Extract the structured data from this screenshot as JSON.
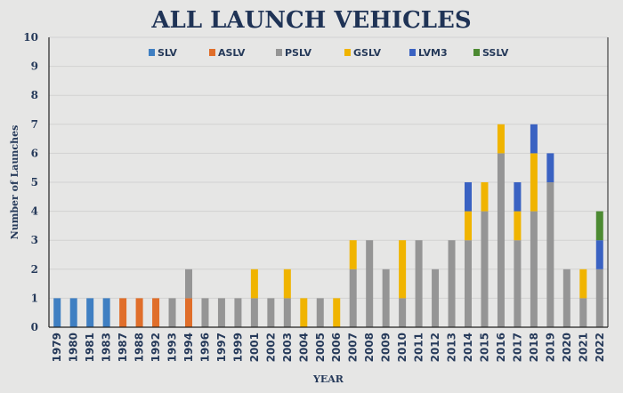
{
  "chart_data": {
    "type": "bar",
    "stacked": true,
    "title": "ALL LAUNCH VEHICLES",
    "xlabel": "YEAR",
    "ylabel": "Number of Launches",
    "ylim": [
      0,
      10
    ],
    "yticks": [
      0,
      1,
      2,
      3,
      4,
      5,
      6,
      7,
      8,
      9,
      10
    ],
    "grid": true,
    "legend_position": "top",
    "categories": [
      "1979",
      "1980",
      "1981",
      "1983",
      "1987",
      "1988",
      "1992",
      "1993",
      "1994",
      "1996",
      "1997",
      "1999",
      "2001",
      "2002",
      "2003",
      "2004",
      "2005",
      "2006",
      "2007",
      "2008",
      "2009",
      "2010",
      "2011",
      "2012",
      "2013",
      "2014",
      "2015",
      "2016",
      "2017",
      "2018",
      "2019",
      "2020",
      "2021",
      "2022"
    ],
    "series": [
      {
        "name": "SLV",
        "color": "#3f7fc2",
        "values": [
          1,
          1,
          1,
          1,
          0,
          0,
          0,
          0,
          0,
          0,
          0,
          0,
          0,
          0,
          0,
          0,
          0,
          0,
          0,
          0,
          0,
          0,
          0,
          0,
          0,
          0,
          0,
          0,
          0,
          0,
          0,
          0,
          0,
          0
        ]
      },
      {
        "name": "ASLV",
        "color": "#e06e2a",
        "values": [
          0,
          0,
          0,
          0,
          1,
          1,
          1,
          0,
          1,
          0,
          0,
          0,
          0,
          0,
          0,
          0,
          0,
          0,
          0,
          0,
          0,
          0,
          0,
          0,
          0,
          0,
          0,
          0,
          0,
          0,
          0,
          0,
          0,
          0
        ]
      },
      {
        "name": "PSLV",
        "color": "#959595",
        "values": [
          0,
          0,
          0,
          0,
          0,
          0,
          0,
          1,
          1,
          1,
          1,
          1,
          1,
          1,
          1,
          0,
          1,
          0,
          2,
          3,
          2,
          1,
          3,
          2,
          3,
          3,
          4,
          6,
          3,
          4,
          5,
          2,
          1,
          2
        ]
      },
      {
        "name": "GSLV",
        "color": "#f0b400",
        "values": [
          0,
          0,
          0,
          0,
          0,
          0,
          0,
          0,
          0,
          0,
          0,
          0,
          1,
          0,
          1,
          1,
          0,
          1,
          1,
          0,
          0,
          2,
          0,
          0,
          0,
          1,
          1,
          1,
          1,
          2,
          0,
          0,
          1,
          0
        ]
      },
      {
        "name": "LVM3",
        "color": "#3a62c2",
        "values": [
          0,
          0,
          0,
          0,
          0,
          0,
          0,
          0,
          0,
          0,
          0,
          0,
          0,
          0,
          0,
          0,
          0,
          0,
          0,
          0,
          0,
          0,
          0,
          0,
          0,
          1,
          0,
          0,
          1,
          1,
          1,
          0,
          0,
          1
        ]
      },
      {
        "name": "SSLV",
        "color": "#4c8a32",
        "values": [
          0,
          0,
          0,
          0,
          0,
          0,
          0,
          0,
          0,
          0,
          0,
          0,
          0,
          0,
          0,
          0,
          0,
          0,
          0,
          0,
          0,
          0,
          0,
          0,
          0,
          0,
          0,
          0,
          0,
          0,
          0,
          0,
          0,
          1
        ]
      }
    ]
  }
}
